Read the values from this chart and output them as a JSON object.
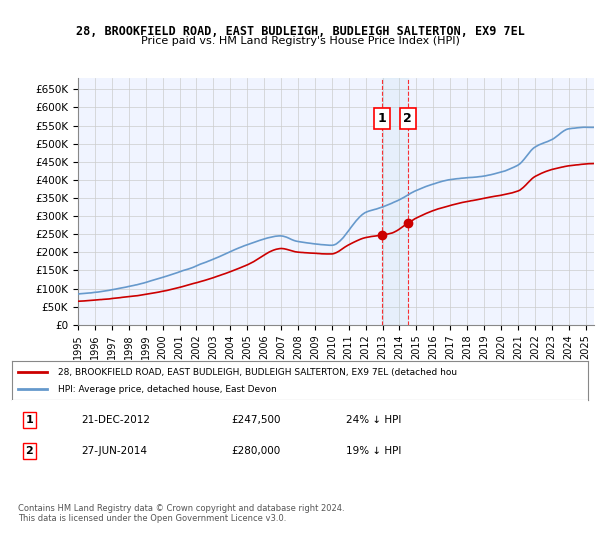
{
  "title_line1": "28, BROOKFIELD ROAD, EAST BUDLEIGH, BUDLEIGH SALTERTON, EX9 7EL",
  "title_line2": "Price paid vs. HM Land Registry's House Price Index (HPI)",
  "ylabel_ticks": [
    "£0",
    "£50K",
    "£100K",
    "£150K",
    "£200K",
    "£250K",
    "£300K",
    "£350K",
    "£400K",
    "£450K",
    "£500K",
    "£550K",
    "£600K",
    "£650K"
  ],
  "ytick_values": [
    0,
    50000,
    100000,
    150000,
    200000,
    250000,
    300000,
    350000,
    400000,
    450000,
    500000,
    550000,
    600000,
    650000
  ],
  "ylim": [
    0,
    680000
  ],
  "xlim_start": 1995.0,
  "xlim_end": 2025.5,
  "xtick_years": [
    1995,
    1996,
    1997,
    1998,
    1999,
    2000,
    2001,
    2002,
    2003,
    2004,
    2005,
    2006,
    2007,
    2008,
    2009,
    2010,
    2011,
    2012,
    2013,
    2014,
    2015,
    2016,
    2017,
    2018,
    2019,
    2020,
    2021,
    2022,
    2023,
    2024,
    2025
  ],
  "hpi_color": "#6699cc",
  "price_color": "#cc0000",
  "marker1_x": 2012.97,
  "marker1_y": 247500,
  "marker2_x": 2014.49,
  "marker2_y": 280000,
  "marker1_label": "1",
  "marker2_label": "2",
  "marker1_date": "21-DEC-2012",
  "marker1_price": "£247,500",
  "marker1_hpi": "24% ↓ HPI",
  "marker2_date": "27-JUN-2014",
  "marker2_price": "£280,000",
  "marker2_hpi": "19% ↓ HPI",
  "legend_label1": "28, BROOKFIELD ROAD, EAST BUDLEIGH, BUDLEIGH SALTERTON, EX9 7EL (detached hou",
  "legend_label2": "HPI: Average price, detached house, East Devon",
  "footer": "Contains HM Land Registry data © Crown copyright and database right 2024.\nThis data is licensed under the Open Government Licence v3.0.",
  "bg_color": "#ffffff",
  "plot_bg_color": "#f0f4ff",
  "grid_color": "#cccccc"
}
